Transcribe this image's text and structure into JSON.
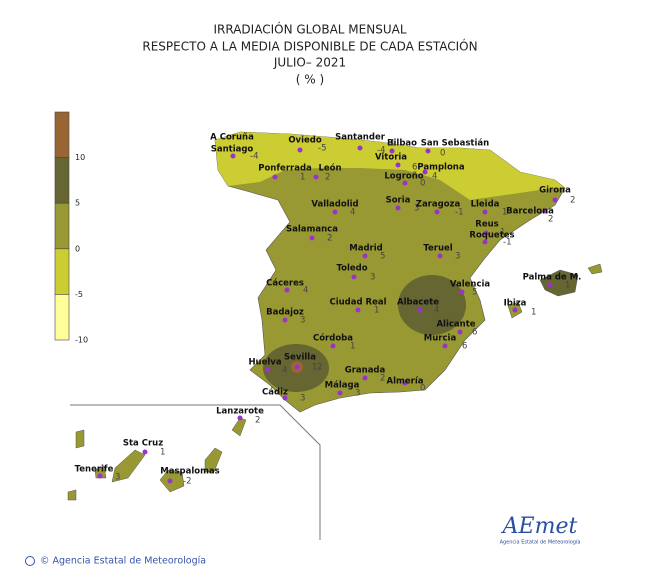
{
  "header": {
    "lines": [
      "IRRADIACIÓN  GLOBAL  MENSUAL",
      "RESPECTO  A LA MEDIA  DISPONIBLE  DE CADA ESTACIÓN",
      "JULIO– 2021",
      "( % )"
    ]
  },
  "legend": {
    "ticks": [
      10,
      5,
      0,
      -5,
      -10
    ],
    "colors": [
      "#996633",
      "#666633",
      "#999933",
      "#cccc33",
      "#ffff99"
    ]
  },
  "stations": [
    {
      "name": "A Coruña"
    },
    {
      "name": "Santiago",
      "value": -4
    },
    {
      "name": "Oviedo",
      "value": -5
    },
    {
      "name": "Santander",
      "value": -4
    },
    {
      "name": "Bilbao",
      "value": 1
    },
    {
      "name": "San Sebastián",
      "value": 0
    },
    {
      "name": "Ponferrada",
      "value": 1
    },
    {
      "name": "León",
      "value": 2
    },
    {
      "name": "Vitoria",
      "value": 6
    },
    {
      "name": "Pamplona",
      "value": 4
    },
    {
      "name": "Logroño",
      "value": 0
    },
    {
      "name": "Girona",
      "value": 2
    },
    {
      "name": "Valladolid",
      "value": 4
    },
    {
      "name": "Soria",
      "value": 3
    },
    {
      "name": "Zaragoza",
      "value": -1
    },
    {
      "name": "Lleida",
      "value": 1
    },
    {
      "name": "Barcelona",
      "value": 2
    },
    {
      "name": "Reus",
      "value": 1
    },
    {
      "name": "Roquetes",
      "value": -1
    },
    {
      "name": "Salamanca",
      "value": 2
    },
    {
      "name": "Madrid",
      "value": 5
    },
    {
      "name": "Teruel",
      "value": 3
    },
    {
      "name": "Palma de M.",
      "value": 1
    },
    {
      "name": "Toledo",
      "value": 3
    },
    {
      "name": "Cáceres",
      "value": 4
    },
    {
      "name": "Ciudad Real",
      "value": 1
    },
    {
      "name": "Albacete",
      "value": 4
    },
    {
      "name": "Valencia",
      "value": 5
    },
    {
      "name": "Ibiza",
      "value": 1
    },
    {
      "name": "Badajoz",
      "value": 3
    },
    {
      "name": "Alicante",
      "value": 6
    },
    {
      "name": "Córdoba",
      "value": 1
    },
    {
      "name": "Murcia",
      "value": 6
    },
    {
      "name": "Huelva",
      "value": 4
    },
    {
      "name": "Sevilla",
      "value": 12
    },
    {
      "name": "Granada",
      "value": 2
    },
    {
      "name": "Almería",
      "value": 0
    },
    {
      "name": "Cádiz",
      "value": 3
    },
    {
      "name": "Málaga",
      "value": 3
    },
    {
      "name": "Lanzarote",
      "value": 2
    },
    {
      "name": "Sta Cruz",
      "value": 1
    },
    {
      "name": "Tenerife",
      "value": 3
    },
    {
      "name": "Maspalomas",
      "value": -2
    }
  ],
  "footer": {
    "copyright": "© Agencia Estatal de Meteorología",
    "logo": "AEmet",
    "logo_sub": "Agencia Estatal de Meteorología"
  }
}
